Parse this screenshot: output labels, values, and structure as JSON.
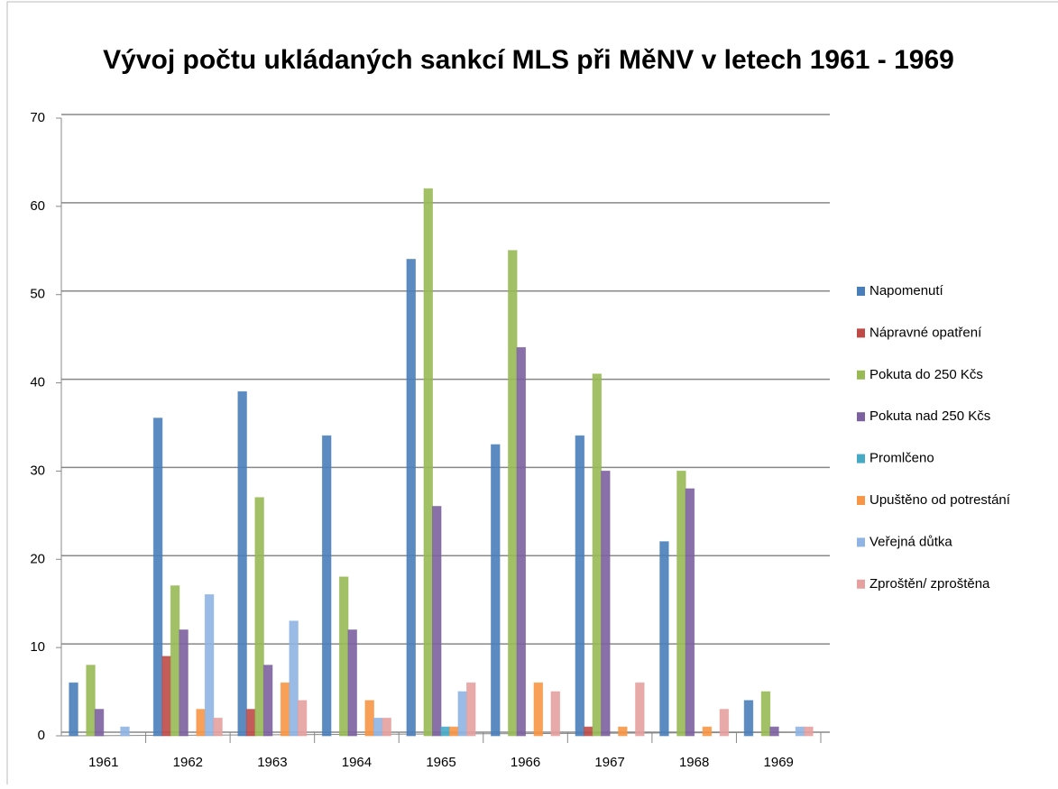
{
  "chart_data": {
    "type": "bar",
    "title": "Vývoj počtu ukládaných sankcí MLS při MěNV v letech 1961 - 1969",
    "categories": [
      "1961",
      "1962",
      "1963",
      "1964",
      "1965",
      "1966",
      "1967",
      "1968",
      "1969"
    ],
    "series": [
      {
        "name": "Napomenutí",
        "color": "#4a7ebb",
        "values": [
          6,
          36,
          39,
          34,
          54,
          33,
          34,
          22,
          4
        ]
      },
      {
        "name": "Nápravné opatření",
        "color": "#be4b48",
        "values": [
          0,
          9,
          3,
          0,
          0,
          0,
          1,
          0,
          0
        ]
      },
      {
        "name": "Pokuta do 250 Kčs",
        "color": "#98b954",
        "values": [
          8,
          17,
          27,
          18,
          62,
          55,
          41,
          30,
          5
        ]
      },
      {
        "name": "Pokuta nad 250 Kčs",
        "color": "#7d60a0",
        "values": [
          3,
          12,
          8,
          12,
          26,
          44,
          30,
          28,
          1
        ]
      },
      {
        "name": "Promlčeno",
        "color": "#46aac5",
        "values": [
          0,
          0,
          0,
          0,
          1,
          0,
          0,
          0,
          0
        ]
      },
      {
        "name": "Upuštěno od potrestání",
        "color": "#f79646",
        "values": [
          0,
          3,
          6,
          4,
          1,
          6,
          1,
          1,
          0
        ]
      },
      {
        "name": "Veřejná důtka",
        "color": "#8fb4e3",
        "values": [
          1,
          16,
          13,
          2,
          5,
          0,
          0,
          0,
          1
        ]
      },
      {
        "name": "Zproštěn/ zproštěna",
        "color": "#e6a0a0",
        "values": [
          0,
          2,
          4,
          2,
          6,
          5,
          6,
          3,
          1
        ]
      }
    ],
    "ylim": [
      0,
      70
    ],
    "yticks": [
      0,
      10,
      20,
      30,
      40,
      50,
      60,
      70
    ],
    "grid": true,
    "legend": "right"
  }
}
